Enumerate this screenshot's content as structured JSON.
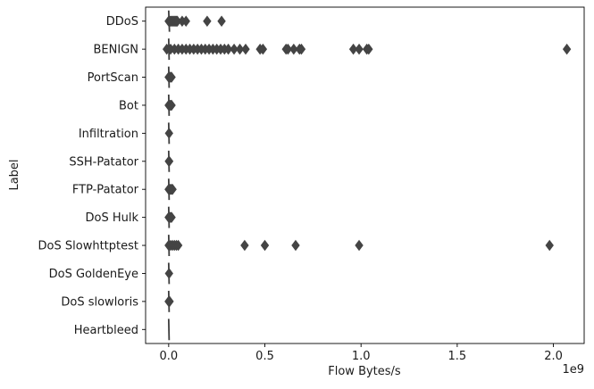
{
  "chart_data": {
    "type": "boxplot",
    "orientation": "horizontal",
    "title": "",
    "xlabel": "Flow Bytes/s",
    "ylabel": "Label",
    "x_offset_label": "1e9",
    "x_scale_exponent": 9,
    "xlim": [
      -0.12,
      2.16
    ],
    "xticks": [
      0.0,
      0.5,
      1.0,
      1.5,
      2.0
    ],
    "xtick_labels": [
      "0.0",
      "0.5",
      "1.0",
      "1.5",
      "2.0"
    ],
    "grid": false,
    "legend": "none",
    "box_color": "#3d3d3d",
    "outlier_color": "#444444",
    "categories": [
      {
        "label": "DDoS",
        "box_max": 0.004,
        "outliers": [
          0.0,
          0.005,
          0.01,
          0.015,
          0.02,
          0.025,
          0.03,
          0.035,
          0.04,
          0.045,
          0.07,
          0.09,
          0.2,
          0.275
        ]
      },
      {
        "label": "BENIGN",
        "box_max": 0.002,
        "outliers": [
          -0.01,
          0.01,
          0.03,
          0.05,
          0.07,
          0.09,
          0.11,
          0.13,
          0.15,
          0.17,
          0.19,
          0.21,
          0.23,
          0.25,
          0.27,
          0.29,
          0.31,
          0.34,
          0.37,
          0.4,
          0.475,
          0.49,
          0.61,
          0.62,
          0.65,
          0.68,
          0.69,
          0.96,
          0.99,
          1.03,
          1.04,
          2.07
        ]
      },
      {
        "label": "PortScan",
        "box_max": 0.001,
        "outliers": [
          0.0,
          0.005,
          0.01,
          0.015
        ]
      },
      {
        "label": "Bot",
        "box_max": 0.001,
        "outliers": [
          0.0,
          0.005,
          0.01,
          0.015
        ]
      },
      {
        "label": "Infiltration",
        "box_max": 0.001,
        "outliers": [
          0.002
        ]
      },
      {
        "label": "SSH-Patator",
        "box_max": 0.001,
        "outliers": [
          0.001,
          0.003
        ]
      },
      {
        "label": "FTP-Patator",
        "box_max": 0.001,
        "outliers": [
          0.0,
          0.005,
          0.01,
          0.015,
          0.02
        ]
      },
      {
        "label": "DoS Hulk",
        "box_max": 0.001,
        "outliers": [
          0.0,
          0.005,
          0.01,
          0.015
        ]
      },
      {
        "label": "DoS Slowhttptest",
        "box_max": 0.002,
        "outliers": [
          0.0,
          0.01,
          0.02,
          0.03,
          0.04,
          0.05,
          0.395,
          0.5,
          0.66,
          0.99,
          1.98
        ]
      },
      {
        "label": "DoS GoldenEye",
        "box_max": 0.001,
        "outliers": [
          0.002
        ]
      },
      {
        "label": "DoS slowloris",
        "box_max": 0.001,
        "outliers": [
          0.0,
          0.005
        ]
      },
      {
        "label": "Heartbleed",
        "box_max": 0.001,
        "outliers": []
      }
    ]
  }
}
